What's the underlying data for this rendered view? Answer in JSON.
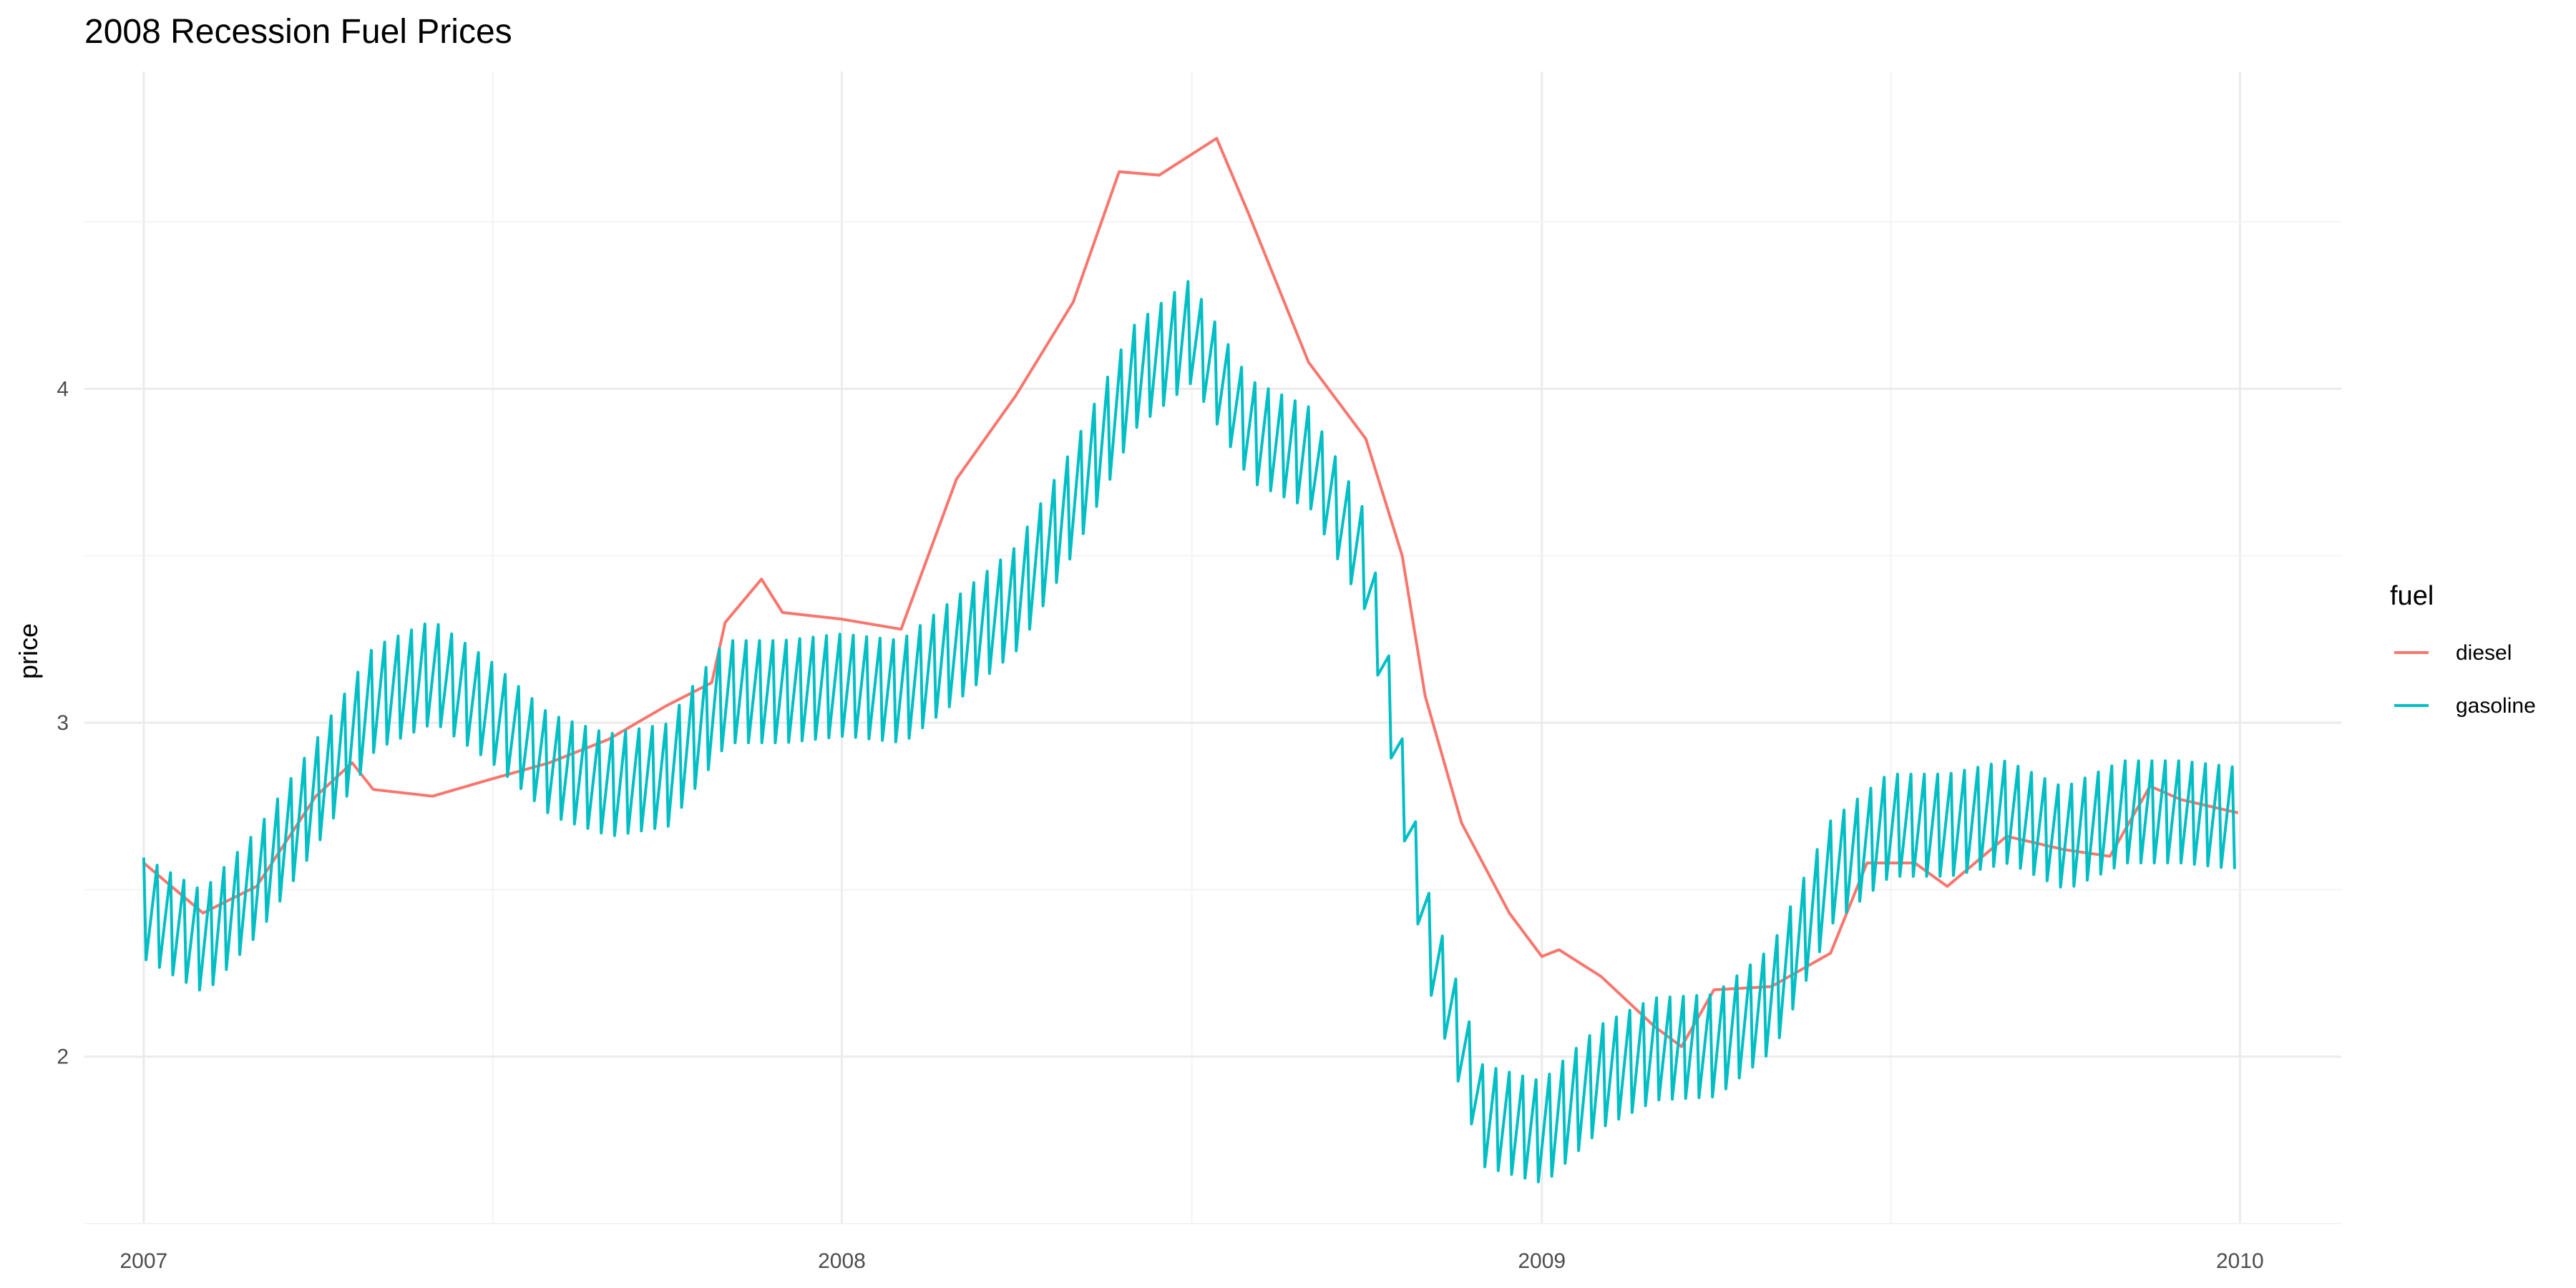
{
  "chart_data": {
    "type": "line",
    "title": "2008 Recession Fuel Prices",
    "xlabel": "",
    "ylabel": "price",
    "xlim": [
      "2006-12-01",
      "2010-02-23"
    ],
    "ylim": [
      1.5,
      4.95
    ],
    "x_ticks": [
      "2007",
      "2008",
      "2009",
      "2010"
    ],
    "y_ticks": [
      2,
      3,
      4
    ],
    "grid": true,
    "legend": {
      "title": "fuel",
      "position": "right"
    },
    "series": [
      {
        "name": "diesel",
        "color": "#F8766D",
        "points": [
          [
            "2007-01-01",
            2.58
          ],
          [
            "2007-02-01",
            2.43
          ],
          [
            "2007-03-01",
            2.51
          ],
          [
            "2007-04-01",
            2.78
          ],
          [
            "2007-04-20",
            2.88
          ],
          [
            "2007-05-01",
            2.8
          ],
          [
            "2007-06-01",
            2.78
          ],
          [
            "2007-07-01",
            2.83
          ],
          [
            "2007-08-01",
            2.88
          ],
          [
            "2007-09-01",
            2.95
          ],
          [
            "2007-10-01",
            3.05
          ],
          [
            "2007-10-25",
            3.12
          ],
          [
            "2007-11-01",
            3.3
          ],
          [
            "2007-11-20",
            3.43
          ],
          [
            "2007-12-01",
            3.33
          ],
          [
            "2008-01-01",
            3.31
          ],
          [
            "2008-02-01",
            3.28
          ],
          [
            "2008-03-01",
            3.73
          ],
          [
            "2008-04-01",
            3.98
          ],
          [
            "2008-05-01",
            4.26
          ],
          [
            "2008-05-25",
            4.65
          ],
          [
            "2008-06-15",
            4.64
          ],
          [
            "2008-07-15",
            4.75
          ],
          [
            "2008-08-01",
            4.52
          ],
          [
            "2008-09-01",
            4.08
          ],
          [
            "2008-10-01",
            3.85
          ],
          [
            "2008-10-20",
            3.5
          ],
          [
            "2008-11-01",
            3.08
          ],
          [
            "2008-11-20",
            2.7
          ],
          [
            "2008-12-15",
            2.43
          ],
          [
            "2009-01-01",
            2.3
          ],
          [
            "2009-01-10",
            2.32
          ],
          [
            "2009-02-01",
            2.24
          ],
          [
            "2009-03-01",
            2.09
          ],
          [
            "2009-03-15",
            2.03
          ],
          [
            "2009-04-01",
            2.2
          ],
          [
            "2009-05-01",
            2.21
          ],
          [
            "2009-06-01",
            2.31
          ],
          [
            "2009-06-20",
            2.58
          ],
          [
            "2009-07-15",
            2.58
          ],
          [
            "2009-08-01",
            2.51
          ],
          [
            "2009-09-01",
            2.66
          ],
          [
            "2009-10-01",
            2.62
          ],
          [
            "2009-10-25",
            2.6
          ],
          [
            "2009-11-15",
            2.81
          ],
          [
            "2009-12-01",
            2.77
          ],
          [
            "2009-12-31",
            2.73
          ]
        ]
      },
      {
        "name": "gasoline",
        "color": "#00BFC4",
        "points": [
          [
            "2007-01-01",
            2.47
          ],
          [
            "2007-02-01",
            2.37
          ],
          [
            "2007-03-01",
            2.55
          ],
          [
            "2007-04-01",
            2.82
          ],
          [
            "2007-05-01",
            3.1
          ],
          [
            "2007-06-01",
            3.18
          ],
          [
            "2007-07-01",
            3.06
          ],
          [
            "2007-08-01",
            2.9
          ],
          [
            "2007-09-01",
            2.84
          ],
          [
            "2007-10-01",
            2.87
          ],
          [
            "2007-11-01",
            3.12
          ],
          [
            "2007-12-01",
            3.12
          ],
          [
            "2008-01-01",
            3.14
          ],
          [
            "2008-02-01",
            3.12
          ],
          [
            "2008-03-01",
            3.25
          ],
          [
            "2008-04-01",
            3.4
          ],
          [
            "2008-05-01",
            3.7
          ],
          [
            "2008-06-01",
            4.06
          ],
          [
            "2008-07-01",
            4.2
          ],
          [
            "2008-08-01",
            3.9
          ],
          [
            "2008-09-01",
            3.82
          ],
          [
            "2008-10-01",
            3.5
          ],
          [
            "2008-11-01",
            2.4
          ],
          [
            "2008-12-01",
            1.85
          ],
          [
            "2009-01-01",
            1.8
          ],
          [
            "2009-02-01",
            1.97
          ],
          [
            "2009-03-01",
            2.05
          ],
          [
            "2009-04-01",
            2.06
          ],
          [
            "2009-05-01",
            2.2
          ],
          [
            "2009-06-01",
            2.58
          ],
          [
            "2009-07-01",
            2.72
          ],
          [
            "2009-08-01",
            2.72
          ],
          [
            "2009-09-01",
            2.76
          ],
          [
            "2009-10-01",
            2.68
          ],
          [
            "2009-11-01",
            2.76
          ],
          [
            "2009-12-01",
            2.76
          ],
          [
            "2009-12-31",
            2.74
          ]
        ],
        "weekly_spike_amplitude": 0.18
      }
    ]
  }
}
